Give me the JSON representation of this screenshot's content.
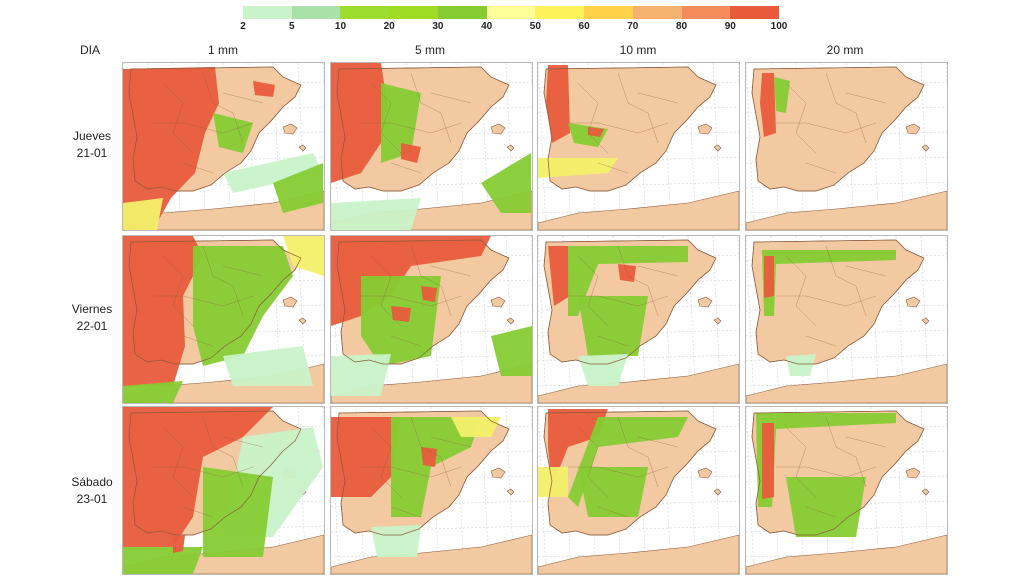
{
  "legend": {
    "ticks": [
      "2",
      "5",
      "10",
      "20",
      "30",
      "40",
      "50",
      "60",
      "70",
      "80",
      "90",
      "100"
    ],
    "colors": [
      "#c9f3c9",
      "#a8e2a8",
      "#9bdc2e",
      "#9edb23",
      "#85cc33",
      "#ffff9a",
      "#fff35c",
      "#ffd24a",
      "#f4b26e",
      "#f58a5a",
      "#e85c3c"
    ]
  },
  "header": {
    "row_header": "DIA",
    "columns": [
      "1 mm",
      "5 mm",
      "10 mm",
      "20 mm"
    ]
  },
  "rows": [
    {
      "day": "Jueves",
      "date": "21-01"
    },
    {
      "day": "Viernes",
      "date": "22-01"
    },
    {
      "day": "Sábado",
      "date": "23-01"
    }
  ],
  "maps": [
    [
      {
        "threshold": "1 mm",
        "day": "Jueves 21-01",
        "max_probability_pct": 100
      },
      {
        "threshold": "5 mm",
        "day": "Jueves 21-01",
        "max_probability_pct": 100
      },
      {
        "threshold": "10 mm",
        "day": "Jueves 21-01",
        "max_probability_pct": 100
      },
      {
        "threshold": "20 mm",
        "day": "Jueves 21-01",
        "max_probability_pct": 100
      }
    ],
    [
      {
        "threshold": "1 mm",
        "day": "Viernes 22-01",
        "max_probability_pct": 100
      },
      {
        "threshold": "5 mm",
        "day": "Viernes 22-01",
        "max_probability_pct": 100
      },
      {
        "threshold": "10 mm",
        "day": "Viernes 22-01",
        "max_probability_pct": 100
      },
      {
        "threshold": "20 mm",
        "day": "Viernes 22-01",
        "max_probability_pct": 100
      }
    ],
    [
      {
        "threshold": "1 mm",
        "day": "Sábado 23-01",
        "max_probability_pct": 100
      },
      {
        "threshold": "5 mm",
        "day": "Sábado 23-01",
        "max_probability_pct": 100
      },
      {
        "threshold": "10 mm",
        "day": "Sábado 23-01",
        "max_probability_pct": 100
      },
      {
        "threshold": "20 mm",
        "day": "Sábado 23-01",
        "max_probability_pct": 100
      }
    ]
  ],
  "map_colors": {
    "land": "#f2c9a0",
    "sea": "#ffffff",
    "borders": "#8a5a3a",
    "graticule": "#c8c8c8",
    "high": "#e85c3c",
    "mid": "#85cc33",
    "light": "#c9f3c9",
    "yellow": "#f3f06a"
  }
}
